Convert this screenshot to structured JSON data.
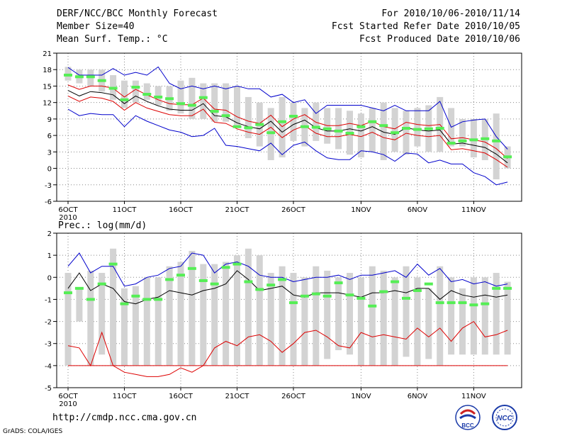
{
  "header": {
    "title": "DERF/NCC/BCC Monthly Forecast",
    "member_size": "Member Size=40",
    "panel1_label": "Mean Surf. Temp.: °C",
    "forecast_period": "For 2010/10/06-2010/11/14",
    "fcst_started": "Fcst Started Refer Date 2010/10/05",
    "fcst_produced": "Fcst Produced Date 2010/10/06"
  },
  "footer": {
    "url": "http://cmdp.ncc.cma.gov.cn",
    "credit": "GrADS: COLA/IGES",
    "logo_left_text": "BCC",
    "logo_right_text": "NCC"
  },
  "colors": {
    "bar": "#d3d3d3",
    "mean_marker": "#55ee55",
    "ensemble_mean": "#000000",
    "spread": "#dd0000",
    "envelope": "#0000cc",
    "grid": "#888888"
  },
  "chart_data": [
    {
      "type": "bar",
      "title": "Mean Surf. Temp.: °C",
      "ylim": [
        -6,
        21
      ],
      "yticks": [
        -6,
        -3,
        0,
        3,
        6,
        9,
        12,
        15,
        18,
        21
      ],
      "xlabel": "",
      "ylabel": "°C",
      "xtick_labels": [
        {
          "day": 1,
          "label": "6OCT",
          "sub": "2010"
        },
        {
          "day": 6,
          "label": "11OCT",
          "sub": ""
        },
        {
          "day": 11,
          "label": "16OCT",
          "sub": ""
        },
        {
          "day": 16,
          "label": "21OCT",
          "sub": ""
        },
        {
          "day": 21,
          "label": "26OCT",
          "sub": ""
        },
        {
          "day": 27,
          "label": "1NOV",
          "sub": ""
        },
        {
          "day": 32,
          "label": "6NOV",
          "sub": ""
        },
        {
          "day": 37,
          "label": "11NOV",
          "sub": ""
        }
      ],
      "days": [
        1,
        2,
        3,
        4,
        5,
        6,
        7,
        8,
        9,
        10,
        11,
        12,
        13,
        14,
        15,
        16,
        17,
        18,
        19,
        20,
        21,
        22,
        23,
        24,
        25,
        26,
        27,
        28,
        29,
        30,
        31,
        32,
        33,
        34,
        35,
        36,
        37,
        38,
        39,
        40
      ],
      "bar_low": [
        16,
        15.5,
        15,
        14,
        12.5,
        11,
        12,
        12.5,
        11.5,
        10.5,
        10,
        9,
        9,
        8.5,
        8.5,
        7.5,
        5.5,
        4,
        1.5,
        2,
        5,
        4,
        5,
        4.5,
        3.5,
        2.5,
        2,
        3,
        1.5,
        3,
        2.5,
        4,
        3,
        3,
        4,
        4,
        2,
        1.5,
        -2,
        0
      ],
      "bar_high": [
        18.5,
        18,
        18,
        18,
        17,
        16,
        16,
        15.5,
        15,
        15,
        16,
        16.5,
        15.5,
        15.5,
        15.5,
        15,
        13,
        12,
        11,
        13,
        12,
        11,
        12,
        11,
        11,
        10.5,
        10,
        11,
        12,
        11,
        10.5,
        11,
        11.5,
        13,
        11,
        9,
        9,
        9,
        10,
        4
      ],
      "marker": [
        17,
        16.7,
        16.7,
        16,
        14.6,
        12.5,
        14.8,
        13.5,
        13,
        12.7,
        11.8,
        11.5,
        12.9,
        10.4,
        9.6,
        7.6,
        7.4,
        8,
        6.5,
        8.5,
        9.5,
        7.6,
        7.5,
        7.2,
        6.8,
        6.4,
        7.6,
        8.5,
        7.8,
        6.5,
        7.3,
        7.1,
        7.2,
        7.3,
        4.6,
        5,
        5.2,
        5.4,
        5,
        2.1
      ],
      "series": [
        {
          "name": "ensemble mean",
          "values": [
            14.2,
            13.2,
            14,
            13.8,
            13.4,
            11.8,
            13.2,
            12.2,
            11.4,
            10.8,
            10.6,
            10.6,
            11.8,
            9.6,
            9.4,
            8.3,
            7.6,
            7.2,
            8.6,
            6.6,
            8,
            8.8,
            7.4,
            6.8,
            6.8,
            7.2,
            6.8,
            7.6,
            6.6,
            6.2,
            7.4,
            7,
            6.8,
            7,
            4.4,
            4.6,
            4.2,
            3.8,
            2.6,
            1
          ]
        },
        {
          "name": "upper spread",
          "values": [
            15.2,
            14.4,
            15,
            15,
            14.6,
            13,
            14.4,
            13.4,
            12.5,
            11.8,
            11.6,
            11.6,
            12.8,
            10.8,
            10.6,
            9.4,
            8.6,
            8.2,
            9.7,
            7.6,
            9,
            9.8,
            8.4,
            7.8,
            7.8,
            8.2,
            7.8,
            8.6,
            7.6,
            7.2,
            8.4,
            8,
            7.8,
            8,
            5.4,
            5.6,
            5.2,
            4.8,
            3.6,
            1.8
          ]
        },
        {
          "name": "lower spread",
          "values": [
            13.2,
            12.2,
            13,
            12.8,
            12.2,
            10.6,
            12,
            11,
            10.4,
            9.8,
            9.6,
            9.6,
            10.8,
            8.4,
            8.2,
            7.2,
            6.6,
            6.2,
            7.5,
            5.6,
            7,
            7.8,
            6.4,
            5.8,
            5.8,
            6.2,
            5.8,
            6.6,
            5.6,
            5.2,
            6.4,
            6,
            5.8,
            6,
            3.4,
            3.6,
            3.2,
            2.8,
            1.6,
            0.2
          ]
        },
        {
          "name": "max envelope",
          "values": [
            18.4,
            17,
            17,
            17,
            18.2,
            17,
            17.5,
            17,
            18.5,
            15.5,
            14.5,
            15,
            14.5,
            15,
            14.5,
            15,
            14.5,
            14.5,
            13,
            13.5,
            12,
            12.5,
            10,
            11.5,
            11.5,
            11.5,
            11.5,
            11,
            10.5,
            11.5,
            10.5,
            10.5,
            10.5,
            12.2,
            7.5,
            8.5,
            8.8,
            9,
            5.8,
            3.5
          ]
        },
        {
          "name": "min envelope",
          "values": [
            10.8,
            9.6,
            10,
            9.8,
            9.8,
            7.6,
            9.6,
            8.6,
            7.8,
            7,
            6.6,
            5.8,
            6,
            7.3,
            4.2,
            4,
            3.6,
            3.2,
            4.6,
            2.5,
            4.2,
            4.8,
            3.2,
            1.9,
            1.6,
            1.6,
            3.2,
            3,
            2.5,
            1.3,
            2.8,
            2.6,
            1,
            1.5,
            0.8,
            0.8,
            -0.8,
            -1.5,
            -3,
            -2.5
          ]
        }
      ]
    },
    {
      "type": "bar",
      "title": "Prec.: log(mm/d)",
      "ylim": [
        -5,
        2
      ],
      "yticks": [
        -5,
        -4,
        -3,
        -2,
        -1,
        0,
        1,
        2
      ],
      "xlabel": "",
      "ylabel": "log(mm/d)",
      "xtick_labels": [
        {
          "day": 1,
          "label": "6OCT",
          "sub": "2010"
        },
        {
          "day": 6,
          "label": "11OCT",
          "sub": ""
        },
        {
          "day": 11,
          "label": "16OCT",
          "sub": ""
        },
        {
          "day": 16,
          "label": "21OCT",
          "sub": ""
        },
        {
          "day": 21,
          "label": "26OCT",
          "sub": ""
        },
        {
          "day": 27,
          "label": "1NOV",
          "sub": ""
        },
        {
          "day": 32,
          "label": "6NOV",
          "sub": ""
        },
        {
          "day": 37,
          "label": "11NOV",
          "sub": ""
        }
      ],
      "days": [
        1,
        2,
        3,
        4,
        5,
        6,
        7,
        8,
        9,
        10,
        11,
        12,
        13,
        14,
        15,
        16,
        17,
        18,
        19,
        20,
        21,
        22,
        23,
        24,
        25,
        26,
        27,
        28,
        29,
        30,
        31,
        32,
        33,
        34,
        35,
        36,
        37,
        38,
        39,
        40
      ],
      "bar_low": [
        -4,
        -2,
        -4,
        -3.5,
        -4,
        -4,
        -4,
        -4,
        -4,
        -4,
        -4,
        -4,
        -4,
        -4,
        -4,
        -4,
        -4,
        -4,
        -4,
        -4,
        -4,
        -4,
        -4,
        -3.7,
        -3.3,
        -3.5,
        -4,
        -4,
        -4,
        -4,
        -3.6,
        -4,
        -3.7,
        -4,
        -3.5,
        -3.5,
        -3.5,
        -3.5,
        -3.5,
        -3.5
      ],
      "bar_high": [
        0.2,
        -0.5,
        0.3,
        0.2,
        1.3,
        -0.5,
        -0.4,
        0,
        0,
        0.5,
        0.7,
        1.2,
        0.6,
        0.6,
        0.7,
        1,
        1.3,
        1,
        0.2,
        0.5,
        0.2,
        0,
        0.5,
        0.3,
        0,
        0.2,
        0,
        0.5,
        0.3,
        0,
        0.5,
        0,
        -0.5,
        0.5,
        0,
        -0.5,
        0,
        0,
        0.2,
        -0.2
      ],
      "marker": [
        -0.7,
        -0.5,
        -1,
        -0.3,
        0.6,
        -1.2,
        -0.85,
        -1,
        -1,
        -0.1,
        0.1,
        0.4,
        -0.15,
        -0.3,
        0.45,
        0.6,
        -0.2,
        -0.55,
        -0.35,
        -0.1,
        -1.15,
        -0.85,
        -0.75,
        -0.85,
        -0.25,
        -0.8,
        -0.95,
        -1.3,
        -0.65,
        -0.2,
        -0.95,
        -0.6,
        -0.3,
        -1.15,
        -1.15,
        -1.15,
        -1.25,
        -1.2,
        -0.5,
        -0.5
      ],
      "series": [
        {
          "name": "ensemble mean",
          "values": [
            -0.5,
            0.2,
            -0.6,
            -0.3,
            -0.5,
            -1.1,
            -1.2,
            -1,
            -0.9,
            -0.6,
            -0.7,
            -0.8,
            -0.6,
            -0.5,
            -0.3,
            0.3,
            -0.1,
            -0.6,
            -0.5,
            -0.4,
            -0.8,
            -0.9,
            -0.7,
            -0.7,
            -0.7,
            -0.8,
            -0.9,
            -0.7,
            -0.7,
            -0.6,
            -0.7,
            -0.5,
            -0.5,
            -1,
            -0.6,
            -0.8,
            -0.9,
            -0.8,
            -0.9,
            -0.8
          ]
        },
        {
          "name": "max envelope",
          "values": [
            0.5,
            1.1,
            0.2,
            0.5,
            0.5,
            -0.4,
            -0.3,
            0,
            0.1,
            0.4,
            0.5,
            1.1,
            1,
            0.2,
            0.6,
            0.7,
            0.5,
            0.1,
            0,
            0,
            -0.2,
            -0.1,
            0,
            0,
            0.1,
            -0.1,
            0.1,
            0.1,
            0.2,
            0.3,
            0,
            0.6,
            0.1,
            0.4,
            -0.2,
            -0.1,
            -0.3,
            -0.2,
            -0.4,
            -0.3
          ]
        },
        {
          "name": "min spread",
          "values": [
            -3.1,
            -3.2,
            -4,
            -2.5,
            -4,
            -4.3,
            -4.4,
            -4.5,
            -4.5,
            -4.4,
            -4.1,
            -4.3,
            -4,
            -3.2,
            -2.9,
            -3.1,
            -2.7,
            -2.6,
            -2.9,
            -3.4,
            -3,
            -2.5,
            -2.4,
            -2.7,
            -3.1,
            -3.2,
            -2.5,
            -2.7,
            -2.6,
            -2.7,
            -2.8,
            -2.3,
            -2.7,
            -2.3,
            -2.9,
            -2.3,
            -2,
            -2.7,
            -2.6,
            -2.4
          ]
        },
        {
          "name": "floor",
          "values": [
            -4,
            -4,
            -4,
            -4,
            -4,
            -4,
            -4,
            -4,
            -4,
            -4,
            -4,
            -4,
            -4,
            -4,
            -4,
            -4,
            -4,
            -4,
            -4,
            -4,
            -4,
            -4,
            -4,
            -4,
            -4,
            -4,
            -4,
            -4,
            -4,
            -4,
            -4,
            -4,
            -4,
            -4,
            -4,
            -4,
            -4,
            -4,
            -4,
            -4
          ]
        }
      ]
    }
  ]
}
